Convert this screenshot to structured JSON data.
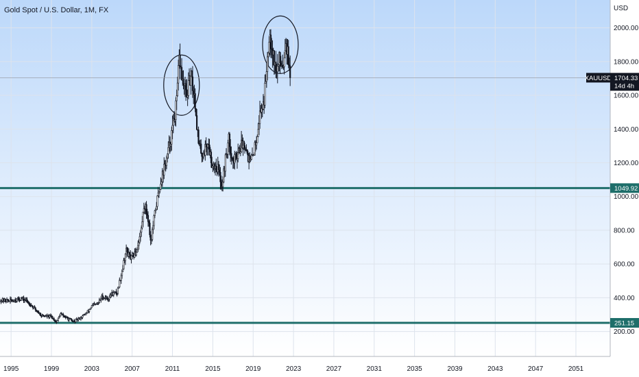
{
  "chart_data": {
    "type": "candlestick",
    "title": "Gold Spot / U.S. Dollar, 1M, FX",
    "price_axis_unit": "USD",
    "price_range": [
      52,
      2165
    ],
    "time_range": [
      1993.9,
      2054.4
    ],
    "x_ticks": [
      "1995",
      "1999",
      "2003",
      "2007",
      "2011",
      "2015",
      "2019",
      "2023",
      "2027",
      "2031",
      "2035",
      "2039",
      "2043",
      "2047",
      "2051"
    ],
    "y_ticks": [
      "200.00",
      "400.00",
      "600.00",
      "800.00",
      "1000.00",
      "1200.00",
      "1400.00",
      "1600.00",
      "1800.00",
      "2000.00"
    ],
    "grid": true,
    "background_gradient": [
      "#bcd8fa",
      "#ffffff"
    ],
    "price_series": [
      {
        "t": 1994.0,
        "price": 385
      },
      {
        "t": 1995.0,
        "price": 382
      },
      {
        "t": 1996.0,
        "price": 395
      },
      {
        "t": 1996.5,
        "price": 383
      },
      {
        "t": 1997.0,
        "price": 355
      },
      {
        "t": 1997.5,
        "price": 325
      },
      {
        "t": 1998.0,
        "price": 295
      },
      {
        "t": 1998.5,
        "price": 290
      },
      {
        "t": 1999.0,
        "price": 287
      },
      {
        "t": 1999.5,
        "price": 255
      },
      {
        "t": 1999.9,
        "price": 305
      },
      {
        "t": 2000.5,
        "price": 280
      },
      {
        "t": 2001.2,
        "price": 258
      },
      {
        "t": 2001.8,
        "price": 278
      },
      {
        "t": 2002.5,
        "price": 310
      },
      {
        "t": 2003.0,
        "price": 350
      },
      {
        "t": 2003.6,
        "price": 365
      },
      {
        "t": 2004.0,
        "price": 405
      },
      {
        "t": 2004.6,
        "price": 395
      },
      {
        "t": 2005.0,
        "price": 425
      },
      {
        "t": 2005.5,
        "price": 430
      },
      {
        "t": 2006.0,
        "price": 560
      },
      {
        "t": 2006.4,
        "price": 680
      },
      {
        "t": 2006.9,
        "price": 630
      },
      {
        "t": 2007.4,
        "price": 670
      },
      {
        "t": 2007.9,
        "price": 800
      },
      {
        "t": 2008.2,
        "price": 960
      },
      {
        "t": 2008.6,
        "price": 870
      },
      {
        "t": 2008.85,
        "price": 730
      },
      {
        "t": 2009.3,
        "price": 920
      },
      {
        "t": 2009.9,
        "price": 1110
      },
      {
        "t": 2010.5,
        "price": 1240
      },
      {
        "t": 2011.0,
        "price": 1400
      },
      {
        "t": 2011.4,
        "price": 1550
      },
      {
        "t": 2011.67,
        "price": 1820
      },
      {
        "t": 2012.0,
        "price": 1680
      },
      {
        "t": 2012.4,
        "price": 1600
      },
      {
        "t": 2012.8,
        "price": 1710
      },
      {
        "t": 2013.2,
        "price": 1590
      },
      {
        "t": 2013.6,
        "price": 1300
      },
      {
        "t": 2014.0,
        "price": 1250
      },
      {
        "t": 2014.5,
        "price": 1320
      },
      {
        "t": 2014.9,
        "price": 1200
      },
      {
        "t": 2015.5,
        "price": 1170
      },
      {
        "t": 2015.9,
        "price": 1060
      },
      {
        "t": 2016.3,
        "price": 1240
      },
      {
        "t": 2016.6,
        "price": 1340
      },
      {
        "t": 2017.0,
        "price": 1200
      },
      {
        "t": 2017.6,
        "price": 1280
      },
      {
        "t": 2018.1,
        "price": 1330
      },
      {
        "t": 2018.7,
        "price": 1195
      },
      {
        "t": 2019.2,
        "price": 1300
      },
      {
        "t": 2019.7,
        "price": 1500
      },
      {
        "t": 2020.1,
        "price": 1580
      },
      {
        "t": 2020.6,
        "price": 1980
      },
      {
        "t": 2020.9,
        "price": 1880
      },
      {
        "t": 2021.3,
        "price": 1730
      },
      {
        "t": 2021.6,
        "price": 1810
      },
      {
        "t": 2022.0,
        "price": 1790
      },
      {
        "t": 2022.2,
        "price": 1940
      },
      {
        "t": 2022.5,
        "price": 1810
      },
      {
        "t": 2022.65,
        "price": 1704
      }
    ],
    "horizontal_levels": [
      {
        "value": 1049.92,
        "label": "1049.92",
        "color": "#1e6e6a"
      },
      {
        "value": 251.15,
        "label": "251.15",
        "color": "#1e6e6a"
      }
    ],
    "current_price": {
      "symbol": "XAUUSD",
      "value": "1704.33",
      "countdown": "14d 4h",
      "color": "#131722"
    },
    "annotations": [
      {
        "shape": "ellipse",
        "t": 2011.9,
        "price": 1660
      },
      {
        "shape": "ellipse",
        "t": 2021.7,
        "price": 1900
      }
    ]
  }
}
